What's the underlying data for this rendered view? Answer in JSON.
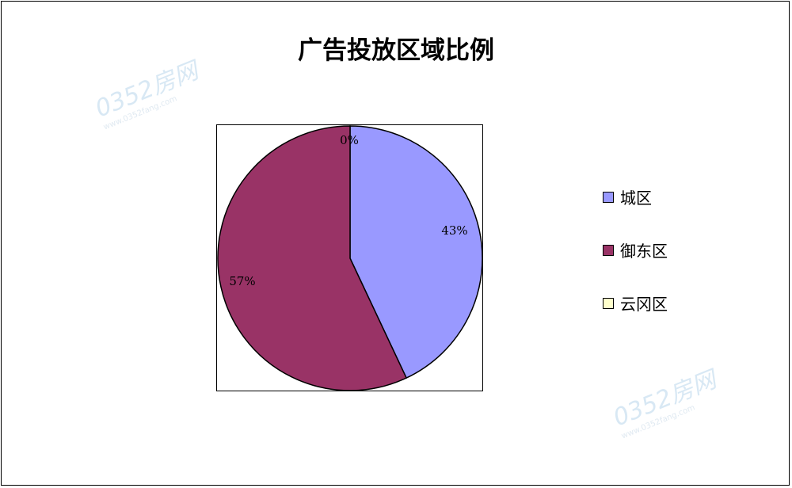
{
  "chart_data": {
    "type": "pie",
    "title": "广告投放区域比例",
    "categories": [
      "城区",
      "御东区",
      "云冈区"
    ],
    "values": [
      43,
      57,
      0
    ],
    "data_labels": [
      "43%",
      "57%",
      "0%"
    ],
    "colors": [
      "#9999FF",
      "#993366",
      "#FFFFCC"
    ],
    "start_angle": "top, clockwise",
    "legend_position": "right"
  },
  "watermark": {
    "brand": "0352房网",
    "url": "www.0352fang.com"
  }
}
